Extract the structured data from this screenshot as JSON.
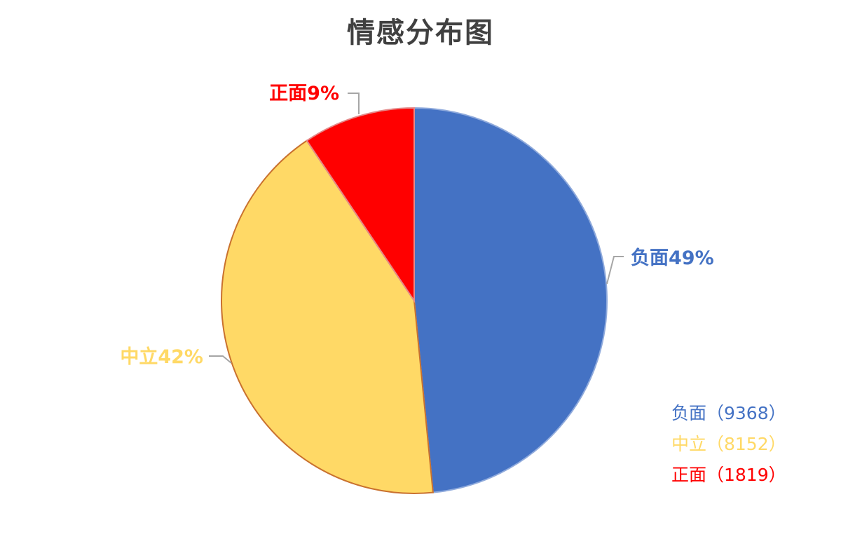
{
  "chart_data": {
    "type": "pie",
    "title": "情感分布图",
    "start_angle_deg": 0,
    "direction": "clockwise",
    "slices": [
      {
        "category": "负面",
        "value": 9368,
        "percent_label": "49%",
        "color": "#4472C4",
        "data_label": "负面49%",
        "legend_label": "负面（9368）"
      },
      {
        "category": "中立",
        "value": 8152,
        "percent_label": "42%",
        "color": "#FFD966",
        "data_label": "中立42%",
        "legend_label": "中立（8152）"
      },
      {
        "category": "正面",
        "value": 1819,
        "percent_label": "9%",
        "color": "#FF0000",
        "data_label": "正面9%",
        "legend_label": "正面（1819）"
      }
    ],
    "legend_position": "bottom-right"
  }
}
